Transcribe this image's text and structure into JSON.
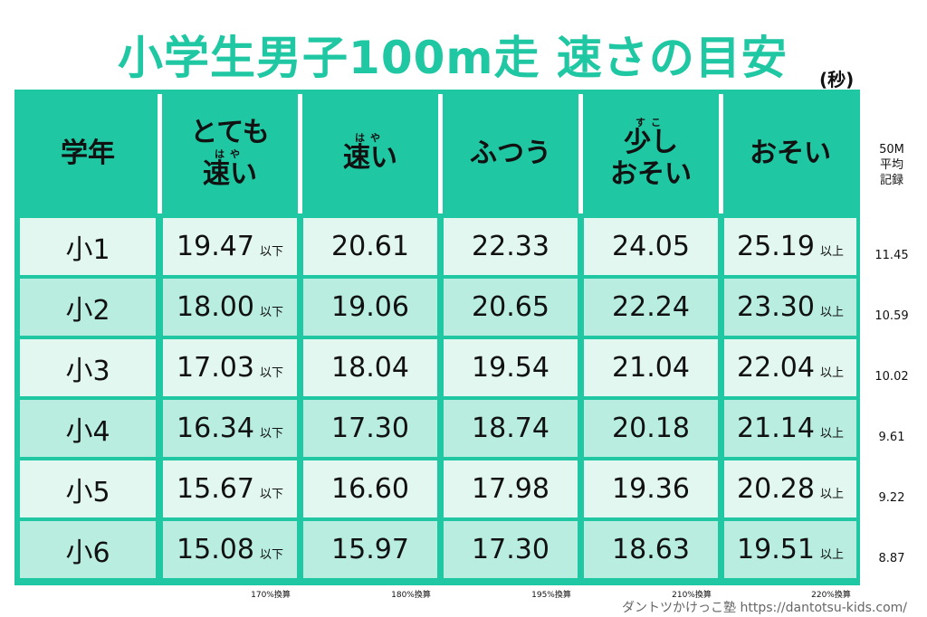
{
  "title": "小学生男子100m走 速さの目安",
  "unit": "(秒)",
  "table": {
    "headers": [
      {
        "lines": [
          {
            "text": "学年"
          }
        ]
      },
      {
        "lines": [
          {
            "text": "とても"
          },
          {
            "text": "速い",
            "ruby": "はや"
          }
        ]
      },
      {
        "lines": [
          {
            "text": "速い",
            "ruby": "はや"
          }
        ]
      },
      {
        "lines": [
          {
            "text": "ふつう"
          }
        ]
      },
      {
        "lines": [
          {
            "text": "少し",
            "ruby": "すこ"
          },
          {
            "text": "おそい"
          }
        ]
      },
      {
        "lines": [
          {
            "text": "おそい"
          }
        ]
      }
    ],
    "side_header": [
      "50M",
      "平均",
      "記録"
    ],
    "rows": [
      {
        "grade": "小1",
        "cells": [
          {
            "value": "19.47",
            "suffix": "以下"
          },
          {
            "value": "20.61"
          },
          {
            "value": "22.33"
          },
          {
            "value": "24.05"
          },
          {
            "value": "25.19",
            "suffix": "以上"
          }
        ],
        "avg_50m": "11.45"
      },
      {
        "grade": "小2",
        "cells": [
          {
            "value": "18.00",
            "suffix": "以下"
          },
          {
            "value": "19.06"
          },
          {
            "value": "20.65"
          },
          {
            "value": "22.24"
          },
          {
            "value": "23.30",
            "suffix": "以上"
          }
        ],
        "avg_50m": "10.59"
      },
      {
        "grade": "小3",
        "cells": [
          {
            "value": "17.03",
            "suffix": "以下"
          },
          {
            "value": "18.04"
          },
          {
            "value": "19.54"
          },
          {
            "value": "21.04"
          },
          {
            "value": "22.04",
            "suffix": "以上"
          }
        ],
        "avg_50m": "10.02"
      },
      {
        "grade": "小4",
        "cells": [
          {
            "value": "16.34",
            "suffix": "以下"
          },
          {
            "value": "17.30"
          },
          {
            "value": "18.74"
          },
          {
            "value": "20.18"
          },
          {
            "value": "21.14",
            "suffix": "以上"
          }
        ],
        "avg_50m": "9.61"
      },
      {
        "grade": "小5",
        "cells": [
          {
            "value": "15.67",
            "suffix": "以下"
          },
          {
            "value": "16.60"
          },
          {
            "value": "17.98"
          },
          {
            "value": "19.36"
          },
          {
            "value": "20.28",
            "suffix": "以上"
          }
        ],
        "avg_50m": "9.22"
      },
      {
        "grade": "小6",
        "cells": [
          {
            "value": "15.08",
            "suffix": "以下"
          },
          {
            "value": "15.97"
          },
          {
            "value": "17.30"
          },
          {
            "value": "18.63"
          },
          {
            "value": "19.51",
            "suffix": "以上"
          }
        ],
        "avg_50m": "8.87"
      }
    ],
    "notes": [
      "170%換算",
      "180%換算",
      "195%換算",
      "210%換算",
      "220%換算"
    ]
  },
  "credit": "ダントツかけっこ塾 https://dantotsu-kids.com/"
}
